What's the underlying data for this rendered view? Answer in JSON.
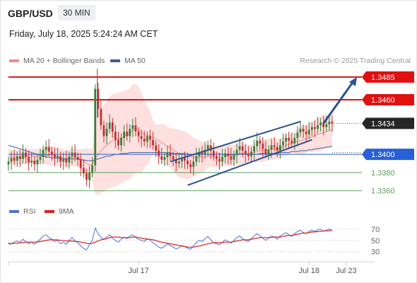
{
  "header": {
    "symbol": "GBP/USD",
    "interval": "30 MIN",
    "datetime": "Friday, July 18, 2025 5:24:24 AM CET"
  },
  "legend": {
    "ma20_label": "MA 20 + Bollinger Bands",
    "ma20_color": "#f08a8a",
    "ma50_label": "MA 50",
    "ma50_color": "#3c5f9e"
  },
  "credit": "Research © 2025 Trading Central",
  "colors": {
    "up": "#3b7d3b",
    "down": "#c53030",
    "resistance": "#e01010",
    "pivot": "#2660d8",
    "support": "#5aa35a",
    "channel": "#2e5190",
    "band_fill": "#fde0df"
  },
  "chart_data": {
    "type": "candlestick",
    "ylim": [
      1.3348,
      1.3495
    ],
    "levels": [
      {
        "label": "1.3485",
        "value": 1.3485,
        "kind": "resistance"
      },
      {
        "label": "1.3460",
        "value": 1.346,
        "kind": "resistance"
      },
      {
        "label": "1.3434",
        "value": 1.3434,
        "kind": "last"
      },
      {
        "label": "1.3400",
        "value": 1.34,
        "kind": "pivot"
      },
      {
        "label": "1.3380",
        "value": 1.338,
        "kind": "support"
      },
      {
        "label": "1.3360",
        "value": 1.336,
        "kind": "support"
      }
    ],
    "x_labels": [
      "Jul 17",
      "Jul 18",
      "Jul 23"
    ],
    "x_label_index": [
      45,
      104,
      120
    ],
    "candle_count": 113,
    "closes": [
      1.3392,
      1.3396,
      1.3393,
      1.3398,
      1.3395,
      1.3402,
      1.3397,
      1.3391,
      1.3393,
      1.3389,
      1.3394,
      1.3397,
      1.3405,
      1.3408,
      1.3403,
      1.34,
      1.3396,
      1.3398,
      1.3392,
      1.3395,
      1.3391,
      1.3398,
      1.3402,
      1.3397,
      1.3394,
      1.3385,
      1.3379,
      1.3372,
      1.338,
      1.3388,
      1.3472,
      1.345,
      1.3432,
      1.342,
      1.3428,
      1.3435,
      1.3425,
      1.3416,
      1.341,
      1.3418,
      1.3425,
      1.342,
      1.3428,
      1.3432,
      1.3425,
      1.342,
      1.3417,
      1.3414,
      1.342,
      1.3416,
      1.341,
      1.3404,
      1.3398,
      1.3394,
      1.3397,
      1.3402,
      1.3398,
      1.3394,
      1.339,
      1.3392,
      1.3396,
      1.3393,
      1.3389,
      1.3386,
      1.3392,
      1.3398,
      1.3402,
      1.34,
      1.3405,
      1.341,
      1.3404,
      1.3398,
      1.3395,
      1.3392,
      1.3397,
      1.3401,
      1.3398,
      1.3394,
      1.3399,
      1.3405,
      1.3409,
      1.3404,
      1.34,
      1.3398,
      1.3403,
      1.3409,
      1.3415,
      1.3412,
      1.3406,
      1.3401,
      1.3405,
      1.341,
      1.3408,
      1.3404,
      1.341,
      1.3414,
      1.3418,
      1.3415,
      1.3412,
      1.3418,
      1.3424,
      1.3428,
      1.3425,
      1.3422,
      1.3427,
      1.343,
      1.3428,
      1.3432,
      1.3435,
      1.343,
      1.3433,
      1.3436,
      1.3434
    ],
    "ma20": [
      1.3398,
      1.3397,
      1.3397,
      1.3397,
      1.3396,
      1.3396,
      1.3397,
      1.3398,
      1.3398,
      1.3398,
      1.3398,
      1.3398,
      1.3398,
      1.3399,
      1.3399,
      1.3399,
      1.3399,
      1.3398,
      1.3397,
      1.3396,
      1.3395,
      1.3396,
      1.3397,
      1.3397,
      1.3396,
      1.3395,
      1.3393,
      1.339,
      1.3388,
      1.3389,
      1.3395,
      1.34,
      1.3404,
      1.3407,
      1.341,
      1.3413,
      1.3415,
      1.3416,
      1.3417,
      1.3418,
      1.342,
      1.3421,
      1.3423,
      1.3427,
      1.3428,
      1.3427,
      1.3424,
      1.3422,
      1.3421,
      1.342,
      1.3419,
      1.3417,
      1.3415,
      1.3413,
      1.3411,
      1.3409,
      1.3407,
      1.3405,
      1.3403,
      1.3401,
      1.34,
      1.3399,
      1.3398,
      1.3397,
      1.3397,
      1.3397,
      1.3397,
      1.3397,
      1.3397,
      1.3398,
      1.3398,
      1.3397,
      1.3397,
      1.3397,
      1.3398,
      1.3399,
      1.3399,
      1.3399,
      1.3399,
      1.34,
      1.3401,
      1.3401,
      1.3401,
      1.3401,
      1.3401,
      1.3402,
      1.3403,
      1.3404,
      1.3404,
      1.3405,
      1.3405,
      1.3406,
      1.3406,
      1.3406,
      1.3407,
      1.3408,
      1.341,
      1.3411,
      1.3412,
      1.3413,
      1.3414,
      1.3415,
      1.3416,
      1.3417,
      1.3418,
      1.3419,
      1.3421,
      1.3422,
      1.3423,
      1.3424,
      1.3425,
      1.3426,
      1.3427
    ],
    "ma50": [
      1.341,
      1.3409,
      1.3408,
      1.3407,
      1.3406,
      1.3405,
      1.3404,
      1.3403,
      1.3402,
      1.3401,
      1.34,
      1.3399,
      1.3398,
      1.3397,
      1.3397,
      1.3396,
      1.3396,
      1.3396,
      1.3395,
      1.3395,
      1.3395,
      1.3395,
      1.3395,
      1.3395,
      1.3395,
      1.3394,
      1.3394,
      1.3393,
      1.3393,
      1.3393,
      1.3394,
      1.3395,
      1.3396,
      1.3397,
      1.3398,
      1.3398,
      1.3399,
      1.34,
      1.34,
      1.3401,
      1.3401,
      1.3401,
      1.3402,
      1.3402,
      1.3402,
      1.3402,
      1.3402,
      1.3402,
      1.3402,
      1.3402,
      1.3402,
      1.3402,
      1.3402,
      1.3402,
      1.3402,
      1.3402,
      1.3402,
      1.3401,
      1.3401,
      1.3401,
      1.3401,
      1.3401,
      1.34,
      1.34,
      1.34,
      1.34,
      1.34,
      1.34,
      1.34,
      1.34,
      1.34,
      1.34,
      1.34,
      1.34,
      1.34,
      1.34,
      1.34,
      1.34,
      1.34,
      1.34,
      1.34,
      1.34,
      1.34,
      1.34,
      1.34,
      1.34,
      1.34,
      1.3401,
      1.3401,
      1.3401,
      1.3401,
      1.3401,
      1.3401,
      1.3401,
      1.3402,
      1.3402,
      1.3402,
      1.3402,
      1.3403,
      1.3403,
      1.3403,
      1.3404,
      1.3404,
      1.3404,
      1.3405,
      1.3405,
      1.3406,
      1.3406,
      1.3407,
      1.3407,
      1.3408,
      1.3408,
      1.3409
    ],
    "rsi_panel": {
      "legend": [
        {
          "label": "RSI",
          "color": "#4f73d4"
        },
        {
          "label": "9MA",
          "color": "#d62020"
        }
      ],
      "ticks": [
        70,
        50,
        30
      ],
      "ylim": [
        22,
        80
      ],
      "rsi": [
        46,
        44,
        47,
        49,
        46,
        52,
        48,
        44,
        47,
        43,
        48,
        52,
        58,
        60,
        55,
        52,
        48,
        50,
        44,
        47,
        43,
        50,
        55,
        49,
        46,
        40,
        36,
        33,
        42,
        50,
        72,
        62,
        56,
        52,
        56,
        60,
        54,
        50,
        47,
        52,
        56,
        53,
        58,
        60,
        55,
        52,
        50,
        48,
        53,
        50,
        46,
        42,
        38,
        36,
        40,
        44,
        41,
        38,
        35,
        37,
        41,
        39,
        36,
        34,
        40,
        46,
        50,
        48,
        53,
        57,
        51,
        46,
        44,
        42,
        47,
        51,
        48,
        45,
        50,
        55,
        58,
        53,
        50,
        48,
        53,
        58,
        62,
        58,
        54,
        50,
        54,
        58,
        56,
        52,
        58,
        61,
        64,
        60,
        57,
        62,
        66,
        68,
        64,
        62,
        66,
        68,
        66,
        69,
        70,
        66,
        68,
        70,
        68
      ],
      "ma9": [
        44,
        44,
        45,
        45,
        46,
        46,
        47,
        47,
        47,
        47,
        47,
        48,
        49,
        50,
        51,
        51,
        51,
        51,
        50,
        50,
        49,
        49,
        49,
        48,
        48,
        47,
        46,
        45,
        44,
        45,
        47,
        49,
        51,
        52,
        53,
        55,
        56,
        56,
        56,
        55,
        55,
        55,
        55,
        56,
        56,
        55,
        54,
        53,
        52,
        52,
        51,
        50,
        48,
        47,
        46,
        45,
        44,
        43,
        42,
        41,
        40,
        39,
        38,
        38,
        38,
        39,
        40,
        41,
        43,
        44,
        45,
        46,
        46,
        46,
        46,
        47,
        47,
        47,
        48,
        49,
        50,
        51,
        51,
        51,
        52,
        53,
        54,
        55,
        55,
        55,
        55,
        55,
        56,
        56,
        56,
        57,
        58,
        59,
        59,
        60,
        61,
        62,
        63,
        63,
        64,
        65,
        65,
        66,
        66,
        67,
        67,
        67,
        68
      ]
    }
  }
}
